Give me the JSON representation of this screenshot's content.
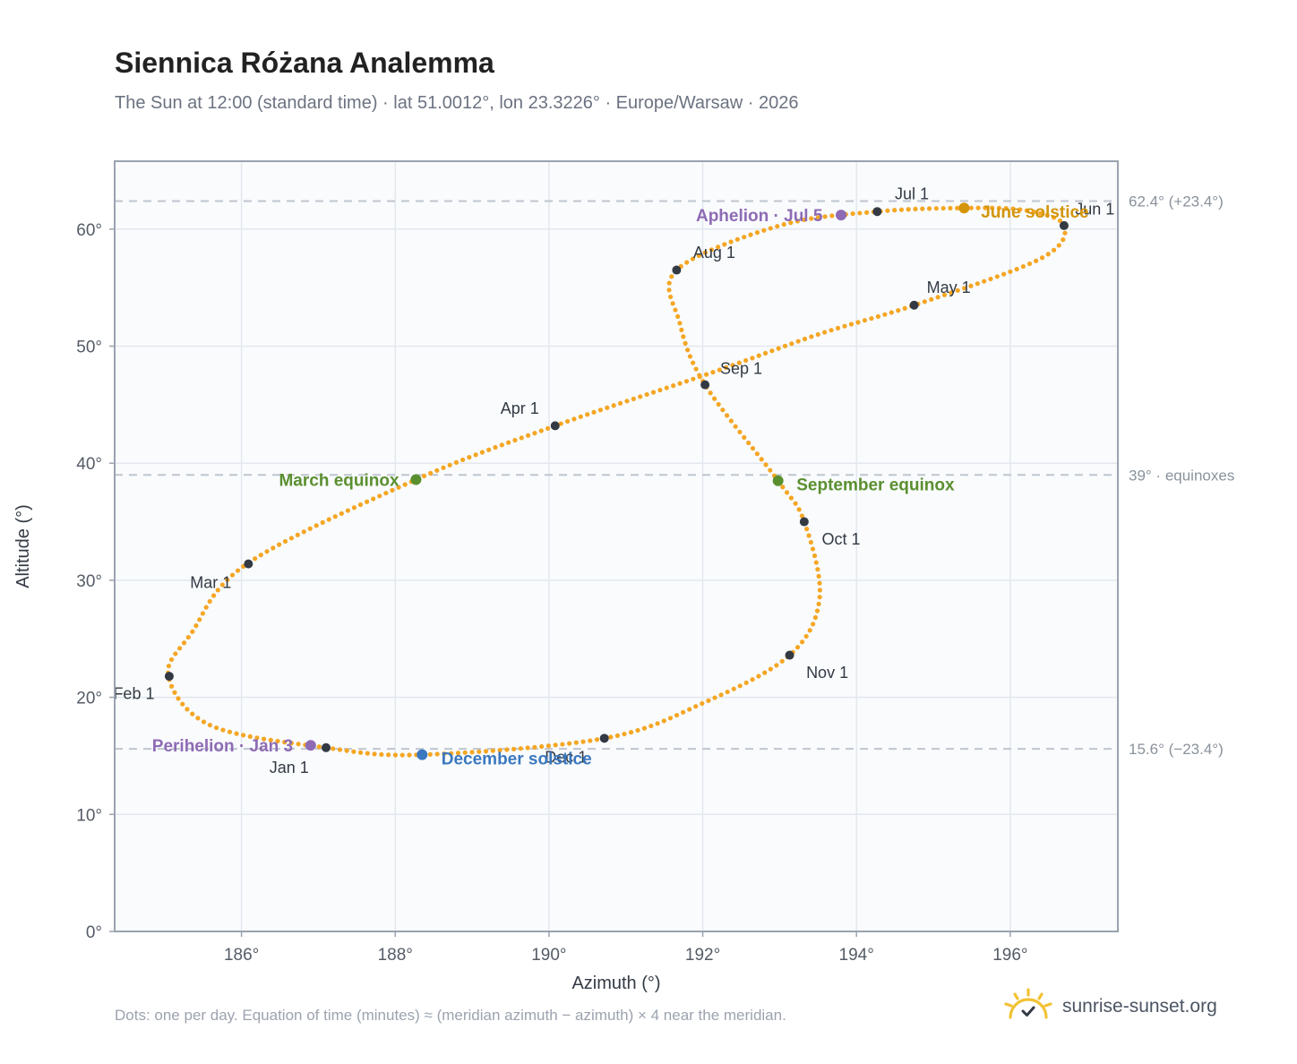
{
  "header": {
    "title": "Siennica Różana Analemma",
    "subtitle": "The Sun at 12:00 (standard time) · lat 51.0012°, lon 23.3226° · Europe/Warsaw · 2026"
  },
  "footer": {
    "note": "Dots: one per day. Equation of time (minutes) ≈ (meridian azimuth − azimuth) × 4 near the meridian.",
    "brand": "sunrise-sunset.org"
  },
  "colors": {
    "curve": "#f5a623",
    "month_marker": "#333a44",
    "equinox": "#5a8f2f",
    "june_solstice": "#d4950a",
    "december_solstice": "#3a78bf",
    "aphelion_perihelion": "#8e6bb4",
    "reference_line": "#c0c6cf",
    "plot_bg": "#f9fbfd",
    "grid": "#e3e8ee"
  },
  "chart_data": {
    "type": "scatter",
    "xlabel": "Azimuth (°)",
    "ylabel": "Altitude (°)",
    "xlim": [
      184.35,
      197.4
    ],
    "ylim": [
      0,
      65.8
    ],
    "x_ticks": [
      186,
      188,
      190,
      192,
      194,
      196
    ],
    "x_tick_labels": [
      "186°",
      "188°",
      "190°",
      "192°",
      "194°",
      "196°"
    ],
    "y_ticks": [
      0,
      10,
      20,
      30,
      40,
      50,
      60
    ],
    "y_tick_labels": [
      "0°",
      "10°",
      "20°",
      "30°",
      "40°",
      "50°",
      "60°"
    ],
    "grid": true,
    "curve_anchors": [
      {
        "x": 187.1,
        "y": 15.7
      },
      {
        "x": 185.6,
        "y": 17.6
      },
      {
        "x": 185.05,
        "y": 21.8
      },
      {
        "x": 185.35,
        "y": 25.5
      },
      {
        "x": 186.07,
        "y": 31.4
      },
      {
        "x": 188.27,
        "y": 38.6
      },
      {
        "x": 190.08,
        "y": 43.2
      },
      {
        "x": 192.1,
        "y": 47.7
      },
      {
        "x": 193.5,
        "y": 51.0
      },
      {
        "x": 194.75,
        "y": 53.5
      },
      {
        "x": 196.4,
        "y": 57.5
      },
      {
        "x": 196.7,
        "y": 60.3
      },
      {
        "x": 196.2,
        "y": 61.6
      },
      {
        "x": 195.4,
        "y": 61.8
      },
      {
        "x": 194.27,
        "y": 61.5
      },
      {
        "x": 193.0,
        "y": 60.3
      },
      {
        "x": 191.66,
        "y": 56.5
      },
      {
        "x": 191.7,
        "y": 52.0
      },
      {
        "x": 192.03,
        "y": 46.7
      },
      {
        "x": 192.98,
        "y": 38.5
      },
      {
        "x": 193.32,
        "y": 35.0
      },
      {
        "x": 193.52,
        "y": 28.5
      },
      {
        "x": 193.13,
        "y": 23.6
      },
      {
        "x": 192.0,
        "y": 19.5
      },
      {
        "x": 190.72,
        "y": 16.5
      },
      {
        "x": 188.35,
        "y": 15.1
      },
      {
        "x": 187.1,
        "y": 15.7
      }
    ],
    "month_markers": [
      {
        "label": "Jan 1",
        "x": 187.1,
        "y": 15.7,
        "lx": 186.62,
        "ly": 14.0
      },
      {
        "label": "Feb 1",
        "x": 185.06,
        "y": 21.8,
        "lx": 184.6,
        "ly": 20.3
      },
      {
        "label": "Mar 1",
        "x": 186.09,
        "y": 31.4,
        "lx": 185.6,
        "ly": 29.8
      },
      {
        "label": "Apr 1",
        "x": 190.08,
        "y": 43.2,
        "lx": 189.62,
        "ly": 44.7
      },
      {
        "label": "May 1",
        "x": 194.75,
        "y": 53.5,
        "lx": 195.2,
        "ly": 55.0
      },
      {
        "label": "Jun 1",
        "x": 196.7,
        "y": 60.3,
        "lx": 197.1,
        "ly": 61.7
      },
      {
        "label": "Jul 1",
        "x": 194.27,
        "y": 61.5,
        "lx": 194.72,
        "ly": 63.0
      },
      {
        "label": "Aug 1",
        "x": 191.66,
        "y": 56.5,
        "lx": 192.15,
        "ly": 58.0
      },
      {
        "label": "Sep 1",
        "x": 192.03,
        "y": 46.7,
        "lx": 192.5,
        "ly": 48.1
      },
      {
        "label": "Oct 1",
        "x": 193.32,
        "y": 35.0,
        "lx": 193.8,
        "ly": 33.5
      },
      {
        "label": "Nov 1",
        "x": 193.13,
        "y": 23.6,
        "lx": 193.62,
        "ly": 22.1
      },
      {
        "label": "Dec 1",
        "x": 190.72,
        "y": 16.5,
        "lx": 190.22,
        "ly": 14.9
      }
    ],
    "events": [
      {
        "label": "March equinox",
        "x": 188.27,
        "y": 38.6,
        "lx": 188.05,
        "ly": 38.6,
        "anchor": "end",
        "color": "#5a8f2f"
      },
      {
        "label": "September equinox",
        "x": 192.98,
        "y": 38.5,
        "lx": 193.22,
        "ly": 38.2,
        "anchor": "start",
        "color": "#5a8f2f"
      },
      {
        "label": "June solstice",
        "x": 195.4,
        "y": 61.8,
        "lx": 195.62,
        "ly": 61.5,
        "anchor": "start",
        "color": "#d4950a"
      },
      {
        "label": "December solstice",
        "x": 188.35,
        "y": 15.1,
        "lx": 188.6,
        "ly": 14.8,
        "anchor": "start",
        "color": "#3a78bf"
      },
      {
        "label": "Aphelion · Jul 5",
        "x": 193.8,
        "y": 61.2,
        "lx": 193.56,
        "ly": 61.2,
        "anchor": "end",
        "color": "#8e6bb4"
      },
      {
        "label": "Perihelion · Jan 3",
        "x": 186.9,
        "y": 15.9,
        "lx": 186.67,
        "ly": 15.9,
        "anchor": "end",
        "color": "#8e6bb4"
      }
    ],
    "reference_lines": [
      {
        "y": 62.4,
        "label": "62.4° (+23.4°)"
      },
      {
        "y": 39.0,
        "label": "39° · equinoxes"
      },
      {
        "y": 15.6,
        "label": "15.6° (−23.4°)"
      }
    ]
  }
}
